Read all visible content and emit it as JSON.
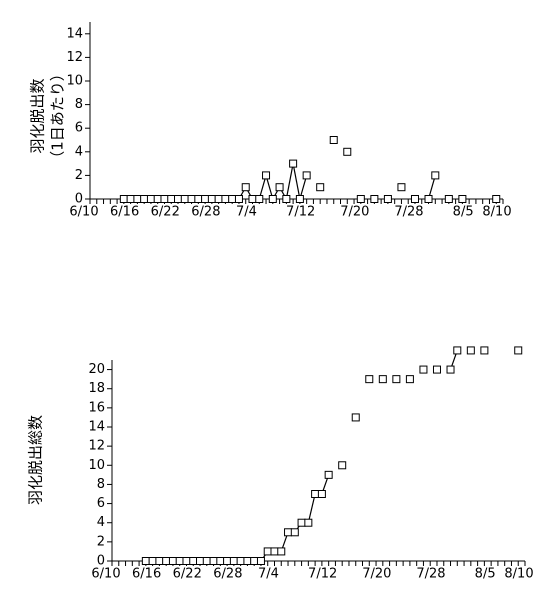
{
  "chart_data": [
    {
      "type": "line",
      "y_label": [
        "羽化脱出数",
        "（1日あたり）"
      ],
      "x": [
        "6/15",
        "6/16",
        "6/17",
        "6/18",
        "6/19",
        "6/20",
        "6/21",
        "6/22",
        "6/23",
        "6/24",
        "6/25",
        "6/26",
        "6/27",
        "6/28",
        "6/29",
        "6/30",
        "7/1",
        "7/2",
        "7/3",
        "7/4",
        "7/5",
        "7/6",
        "7/7",
        "7/8",
        "7/9",
        "7/10",
        "7/11",
        "7/12",
        "7/14",
        "7/16",
        "7/18",
        "7/20",
        "7/22",
        "7/24",
        "7/26",
        "7/28",
        "7/30",
        "7/31",
        "8/2",
        "8/4",
        "8/9"
      ],
      "values": [
        0,
        0,
        0,
        0,
        0,
        0,
        0,
        0,
        0,
        0,
        0,
        0,
        0,
        0,
        0,
        0,
        0,
        0,
        1,
        0,
        0,
        2,
        0,
        1,
        0,
        3,
        0,
        2,
        1,
        5,
        4,
        0,
        0,
        0,
        1,
        0,
        0,
        2,
        0,
        0,
        0
      ],
      "xlim": [
        "6/10",
        "8/10"
      ],
      "xticks": [
        "6/10",
        "6/16",
        "6/22",
        "6/28",
        "7/4",
        "7/12",
        "7/20",
        "7/28",
        "8/5",
        "8/10"
      ],
      "ylim": [
        0,
        15
      ],
      "yticks": [
        0,
        2,
        4,
        6,
        8,
        10,
        12,
        14
      ],
      "color": "#000000"
    },
    {
      "type": "line",
      "y_label": [
        "羽化脱出総数"
      ],
      "x": [
        "6/15",
        "6/16",
        "6/17",
        "6/18",
        "6/19",
        "6/20",
        "6/21",
        "6/22",
        "6/23",
        "6/24",
        "6/25",
        "6/26",
        "6/27",
        "6/28",
        "6/29",
        "6/30",
        "7/1",
        "7/2",
        "7/3",
        "7/4",
        "7/5",
        "7/6",
        "7/7",
        "7/8",
        "7/9",
        "7/10",
        "7/11",
        "7/12",
        "7/14",
        "7/16",
        "7/18",
        "7/20",
        "7/22",
        "7/24",
        "7/26",
        "7/28",
        "7/30",
        "7/31",
        "8/2",
        "8/4",
        "8/9"
      ],
      "values": [
        0,
        0,
        0,
        0,
        0,
        0,
        0,
        0,
        0,
        0,
        0,
        0,
        0,
        0,
        0,
        0,
        0,
        0,
        1,
        1,
        1,
        3,
        3,
        4,
        4,
        7,
        7,
        9,
        10,
        15,
        19,
        19,
        19,
        19,
        20,
        20,
        20,
        22,
        22,
        22,
        22
      ],
      "xlim": [
        "6/10",
        "8/10"
      ],
      "xticks": [
        "6/10",
        "6/16",
        "6/22",
        "6/28",
        "7/4",
        "7/12",
        "7/20",
        "7/28",
        "8/5",
        "8/10"
      ],
      "ylim": [
        0,
        21
      ],
      "yticks": [
        0,
        2,
        4,
        6,
        8,
        10,
        12,
        14,
        16,
        18,
        20
      ],
      "color": "#000000"
    }
  ]
}
